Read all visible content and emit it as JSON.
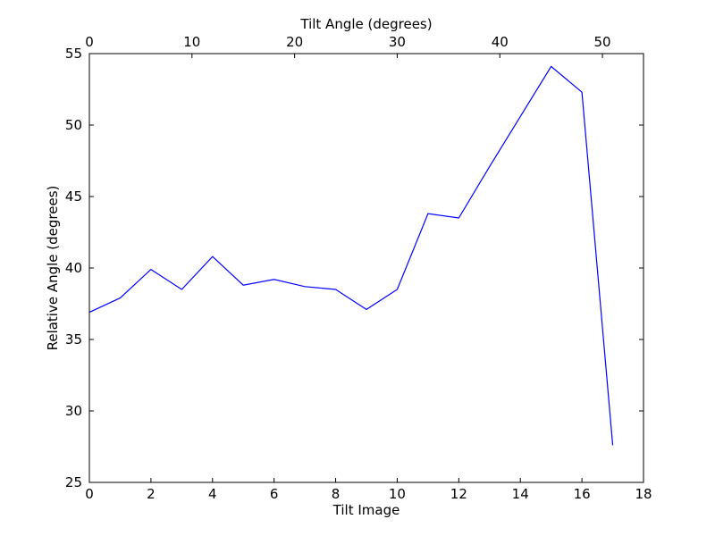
{
  "chart_data": {
    "type": "line",
    "xlabel": "Tilt Image",
    "ylabel": "Relative Angle (degrees)",
    "top_xlabel": "Tilt Angle (degrees)",
    "xlim": [
      0,
      18
    ],
    "ylim": [
      25,
      55
    ],
    "top_xlim": [
      0,
      54
    ],
    "xticks": [
      0,
      2,
      4,
      6,
      8,
      10,
      12,
      14,
      16,
      18
    ],
    "yticks": [
      25,
      30,
      35,
      40,
      45,
      50,
      55
    ],
    "top_xticks": [
      0,
      10,
      20,
      30,
      40,
      50
    ],
    "grid": false,
    "line_color": "#0000ff",
    "series": [
      {
        "x": [
          0,
          1,
          2,
          3,
          4,
          5,
          6,
          7,
          8,
          9,
          10,
          11,
          12,
          13,
          14,
          15,
          16,
          17
        ],
        "values": [
          36.9,
          37.9,
          39.9,
          38.5,
          40.8,
          38.8,
          39.2,
          38.7,
          38.5,
          37.1,
          38.5,
          43.8,
          43.5,
          47.1,
          50.6,
          54.1,
          52.3,
          27.6
        ]
      }
    ]
  }
}
